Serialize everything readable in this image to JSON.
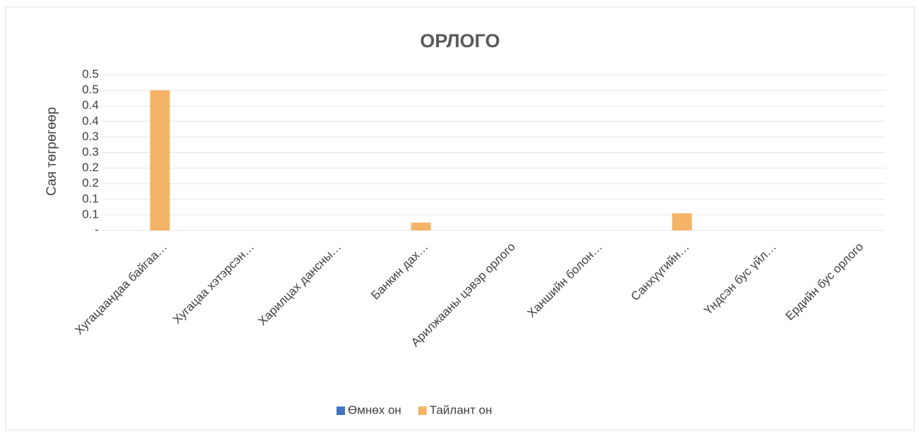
{
  "chart_data": {
    "type": "bar",
    "title": "ОРЛОГО",
    "y_label": "Сая төгрөгөөр",
    "categories": [
      "Хугацаандаа байгаа…",
      "Хугацаа хэтэрсэн…",
      "Харилцах дансны…",
      "Банкин дах…",
      "Арилжааны цэвэр орлого",
      "Ханшийн болон…",
      "Санхүүгийн…",
      "Үндсэн бус үйл…",
      "Ердийн бус орлого"
    ],
    "series": [
      {
        "name": "Өмнөх он",
        "color": "#4472c4",
        "values": [
          0,
          0,
          0,
          0,
          0,
          0,
          0,
          0,
          0
        ]
      },
      {
        "name": "Тайлант он",
        "color": "#f4b366",
        "values": [
          0.45,
          0,
          0,
          0.025,
          0,
          0,
          0.055,
          0,
          0
        ]
      }
    ],
    "ylim": [
      0,
      0.5
    ],
    "yticks": [
      {
        "value": 0,
        "label": "-"
      },
      {
        "value": 0.05,
        "label": "0.1"
      },
      {
        "value": 0.1,
        "label": "0.1"
      },
      {
        "value": 0.15,
        "label": "0.2"
      },
      {
        "value": 0.2,
        "label": "0.2"
      },
      {
        "value": 0.25,
        "label": "0.3"
      },
      {
        "value": 0.3,
        "label": "0.3"
      },
      {
        "value": 0.35,
        "label": "0.4"
      },
      {
        "value": 0.4,
        "label": "0.4"
      },
      {
        "value": 0.45,
        "label": "0.5"
      },
      {
        "value": 0.5,
        "label": "0.5"
      }
    ],
    "grid": true,
    "legend": "bottom"
  }
}
